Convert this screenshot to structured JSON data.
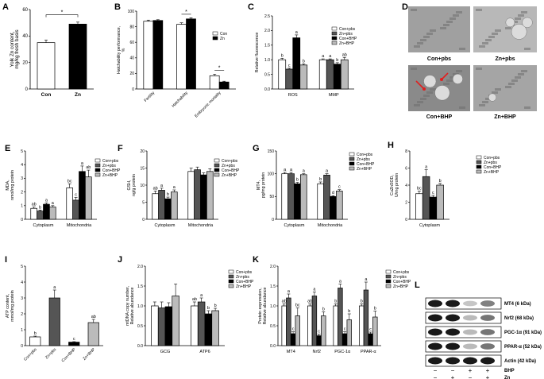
{
  "colors": {
    "con": "#ffffff",
    "zn": "#555555",
    "conbhp": "#000000",
    "znbhp": "#bbbbbb",
    "axis": "#000000",
    "arrow": "#e02020"
  },
  "chart_data": [
    {
      "panel": "A",
      "type": "bar",
      "ylabel": "Yolk Zn content, mg/kg fresh basis",
      "categories": [
        "Con",
        "Zn"
      ],
      "values": [
        35,
        49
      ],
      "errors": [
        2,
        1.5
      ],
      "ylim": [
        0,
        60
      ],
      "yticks": [
        0,
        20,
        40,
        60
      ],
      "significance": [
        "*"
      ]
    },
    {
      "panel": "B",
      "type": "bar",
      "ylabel": "Hatchability performance, %",
      "categories": [
        "Fertility",
        "Hatchability",
        "Embryonic mortality"
      ],
      "series": [
        {
          "name": "Con",
          "values": [
            87,
            83,
            17
          ],
          "errors": [
            1.5,
            2,
            2
          ]
        },
        {
          "name": "Zn",
          "values": [
            88,
            90,
            9
          ],
          "errors": [
            1,
            1.5,
            1
          ]
        }
      ],
      "ylim": [
        0,
        100
      ],
      "yticks": [
        0,
        20,
        40,
        60,
        80,
        100
      ],
      "significance": [
        "*",
        "*"
      ]
    },
    {
      "panel": "C",
      "type": "bar",
      "ylabel": "Relative fluorescence",
      "categories": [
        "ROS",
        "MMP"
      ],
      "series": [
        {
          "name": "Con+pbs",
          "values": [
            1.0,
            1.0
          ],
          "errors": [
            0.05,
            0.03
          ]
        },
        {
          "name": "Zn+pbs",
          "values": [
            0.68,
            1.0
          ],
          "errors": [
            0.03,
            0.03
          ]
        },
        {
          "name": "Con+BHP",
          "values": [
            1.75,
            0.85
          ],
          "errors": [
            0.1,
            0.05
          ]
        },
        {
          "name": "Zn+BHP",
          "values": [
            0.82,
            1.0
          ],
          "errors": [
            0.04,
            0.08
          ]
        }
      ],
      "letters": [
        [
          "b",
          "c",
          "a",
          "b"
        ],
        [
          "a",
          "a",
          "b",
          "ab"
        ]
      ],
      "ylim": [
        0,
        2.5
      ],
      "yticks": [
        0.0,
        0.5,
        1.0,
        1.5,
        2.0,
        2.5
      ]
    },
    {
      "panel": "E",
      "type": "bar",
      "ylabel": "MDA, nmol/mg protein",
      "categories": [
        "Cytoplasm",
        "Mitochondria"
      ],
      "series": [
        {
          "name": "Con+pbs",
          "values": [
            0.8,
            2.3
          ],
          "errors": [
            0.1,
            0.3
          ]
        },
        {
          "name": "Zn+pbs",
          "values": [
            0.6,
            1.4
          ],
          "errors": [
            0.08,
            0.2
          ]
        },
        {
          "name": "Con+BHP",
          "values": [
            1.1,
            3.5
          ],
          "errors": [
            0.1,
            0.4
          ]
        },
        {
          "name": "Zn+BHP",
          "values": [
            0.9,
            3.1
          ],
          "errors": [
            0.1,
            0.5
          ]
        }
      ],
      "letters": [
        [
          "ab",
          "b",
          "a",
          "a"
        ],
        [
          "bc",
          "c",
          "a",
          "ab"
        ]
      ],
      "ylim": [
        0,
        5
      ],
      "yticks": [
        0,
        1,
        2,
        3,
        4,
        5
      ]
    },
    {
      "panel": "F",
      "type": "bar",
      "ylabel": "GSH, ng/g protein",
      "categories": [
        "Cytoplasm",
        "Mitochondria"
      ],
      "series": [
        {
          "name": "Con+pbs",
          "values": [
            7.5,
            14
          ],
          "errors": [
            0.8,
            1
          ]
        },
        {
          "name": "Zn+pbs",
          "values": [
            8.5,
            14.5
          ],
          "errors": [
            0.6,
            0.8
          ]
        },
        {
          "name": "Con+BHP",
          "values": [
            6,
            13
          ],
          "errors": [
            0.5,
            0.6
          ]
        },
        {
          "name": "Zn+BHP",
          "values": [
            8,
            14
          ],
          "errors": [
            0.6,
            0.8
          ]
        }
      ],
      "letters": [
        [
          "ab",
          "a",
          "b",
          "a"
        ],
        []
      ],
      "ylim": [
        0,
        20
      ],
      "yticks": [
        0,
        5,
        10,
        15,
        20
      ]
    },
    {
      "panel": "G",
      "type": "bar",
      "ylabel": "MT4, pg/mg protein",
      "categories": [
        "Cytoplasm",
        "Mitochondria"
      ],
      "series": [
        {
          "name": "Con+pbs",
          "values": [
            100,
            78
          ],
          "errors": [
            3,
            4
          ]
        },
        {
          "name": "Zn+pbs",
          "values": [
            100,
            97
          ],
          "errors": [
            3,
            3
          ]
        },
        {
          "name": "Con+BHP",
          "values": [
            78,
            50
          ],
          "errors": [
            3,
            2
          ]
        },
        {
          "name": "Zn+BHP",
          "values": [
            98,
            62
          ],
          "errors": [
            2,
            3
          ]
        }
      ],
      "letters": [
        [
          "a",
          "a",
          "b",
          "a"
        ],
        [
          "b",
          "a",
          "d",
          "c"
        ]
      ],
      "ylim": [
        0,
        150
      ],
      "yticks": [
        0,
        50,
        100,
        150
      ]
    },
    {
      "panel": "H",
      "type": "bar",
      "ylabel": "CuZnSOD, U/mg protein",
      "categories": [
        "Cytoplasm"
      ],
      "series": [
        {
          "name": "Con+pbs",
          "values": [
            3.0
          ],
          "errors": [
            0.3
          ]
        },
        {
          "name": "Zn+pbs",
          "values": [
            5.0
          ],
          "errors": [
            0.8
          ]
        },
        {
          "name": "Con+BHP",
          "values": [
            2.6
          ],
          "errors": [
            0.2
          ]
        },
        {
          "name": "Zn+BHP",
          "values": [
            4.0
          ],
          "errors": [
            0.2
          ]
        }
      ],
      "letters": [
        [
          "bc",
          "a",
          "c",
          "b"
        ]
      ],
      "ylim": [
        0,
        8
      ],
      "yticks": [
        0,
        2,
        4,
        6,
        8
      ]
    },
    {
      "panel": "I",
      "type": "bar",
      "ylabel": "ATP content, mmol/mg protein",
      "categories": [
        "Con+pbs",
        "Zn+pbs",
        "Con+BHP",
        "Zn+BHP"
      ],
      "values": [
        0.55,
        3.0,
        0.22,
        1.45
      ],
      "errors": [
        0.05,
        0.5,
        0.03,
        0.2
      ],
      "letters": [
        "b",
        "a",
        "c",
        "ab"
      ],
      "ylim": [
        0,
        5
      ],
      "yticks": [
        0,
        1,
        2,
        3,
        4,
        5
      ]
    },
    {
      "panel": "J",
      "type": "bar",
      "ylabel": "mtDNA copy number, Relative abundance",
      "categories": [
        "GCG",
        "ATP6"
      ],
      "series": [
        {
          "name": "Con+pbs",
          "values": [
            1.0,
            1.0
          ],
          "errors": [
            0.1,
            0.1
          ]
        },
        {
          "name": "Zn+pbs",
          "values": [
            0.95,
            1.1
          ],
          "errors": [
            0.15,
            0.1
          ]
        },
        {
          "name": "Con+BHP",
          "values": [
            0.98,
            0.8
          ],
          "errors": [
            0.1,
            0.08
          ]
        },
        {
          "name": "Zn+BHP",
          "values": [
            1.25,
            0.88
          ],
          "errors": [
            0.3,
            0.06
          ]
        }
      ],
      "letters": [
        [],
        [
          "ab",
          "a",
          "b",
          "b"
        ]
      ],
      "ylim": [
        0,
        2.0
      ],
      "yticks": [
        0.0,
        0.5,
        1.0,
        1.5,
        2.0
      ]
    },
    {
      "panel": "K",
      "type": "bar",
      "ylabel": "Protein expression, Relative abundance",
      "categories": [
        "MT4",
        "Nrf2",
        "PGC-1α",
        "PPAR-α"
      ],
      "series": [
        {
          "name": "Con+pbs",
          "values": [
            1.0,
            1.0,
            1.0,
            1.0
          ],
          "errors": [
            0.05,
            0.05,
            0.05,
            0.05
          ]
        },
        {
          "name": "Zn+pbs",
          "values": [
            1.2,
            1.25,
            1.45,
            1.4
          ],
          "errors": [
            0.1,
            0.1,
            0.1,
            0.2
          ]
        },
        {
          "name": "Con+BHP",
          "values": [
            0.3,
            0.25,
            0.3,
            0.3
          ],
          "errors": [
            0.05,
            0.04,
            0.05,
            0.04
          ]
        },
        {
          "name": "Zn+BHP",
          "values": [
            0.75,
            0.75,
            0.65,
            0.72
          ],
          "errors": [
            0.2,
            0.1,
            0.15,
            0.15
          ]
        }
      ],
      "letters": [
        [
          "ab",
          "a",
          "c",
          "bc"
        ],
        [
          "ab",
          "a",
          "c",
          "b"
        ],
        [
          "b",
          "a",
          "c",
          "b"
        ],
        [
          "b",
          "a",
          "c",
          "b"
        ]
      ],
      "ylim": [
        0,
        2.0
      ],
      "yticks": [
        0.0,
        0.5,
        1.0,
        1.5,
        2.0
      ]
    }
  ],
  "panel_d": {
    "label": "D",
    "images": [
      {
        "caption": "Con+pbs",
        "tone": "#a0a0a0",
        "circles": []
      },
      {
        "caption": "Zn+pbs",
        "tone": "#b8b8b8",
        "circles": [
          [
            0.72,
            0.55,
            0.12
          ],
          [
            0.58,
            0.35,
            0.07
          ],
          [
            0.85,
            0.35,
            0.08
          ]
        ]
      },
      {
        "caption": "Con+BHP",
        "tone": "#8a8a8a",
        "circles": [
          [
            0.35,
            0.35,
            0.1
          ],
          [
            0.55,
            0.6,
            0.12
          ],
          [
            0.8,
            0.3,
            0.08
          ]
        ],
        "arrows": true
      },
      {
        "caption": "Zn+BHP",
        "tone": "#a5a5a5",
        "circles": [
          [
            0.3,
            0.7,
            0.06
          ]
        ]
      }
    ]
  },
  "panel_l": {
    "label": "L",
    "bands": [
      "MT4 (6 kDa)",
      "Nrf2 (68 kDa)",
      "PGC-1α (91 kDa)",
      "PPAR-α (52 kDa)",
      "Actin (42 kDa)"
    ],
    "intensity": [
      [
        1,
        1,
        0.25,
        0.55
      ],
      [
        1,
        1,
        0.3,
        0.6
      ],
      [
        1,
        1,
        0.3,
        0.6
      ],
      [
        1,
        1,
        0.3,
        0.6
      ],
      [
        1,
        1,
        1,
        1
      ]
    ],
    "rows": [
      {
        "label": "BHP",
        "signs": [
          "−",
          "−",
          "+",
          "+"
        ]
      },
      {
        "label": "Zn",
        "signs": [
          "−",
          "+",
          "−",
          "+"
        ]
      }
    ]
  }
}
